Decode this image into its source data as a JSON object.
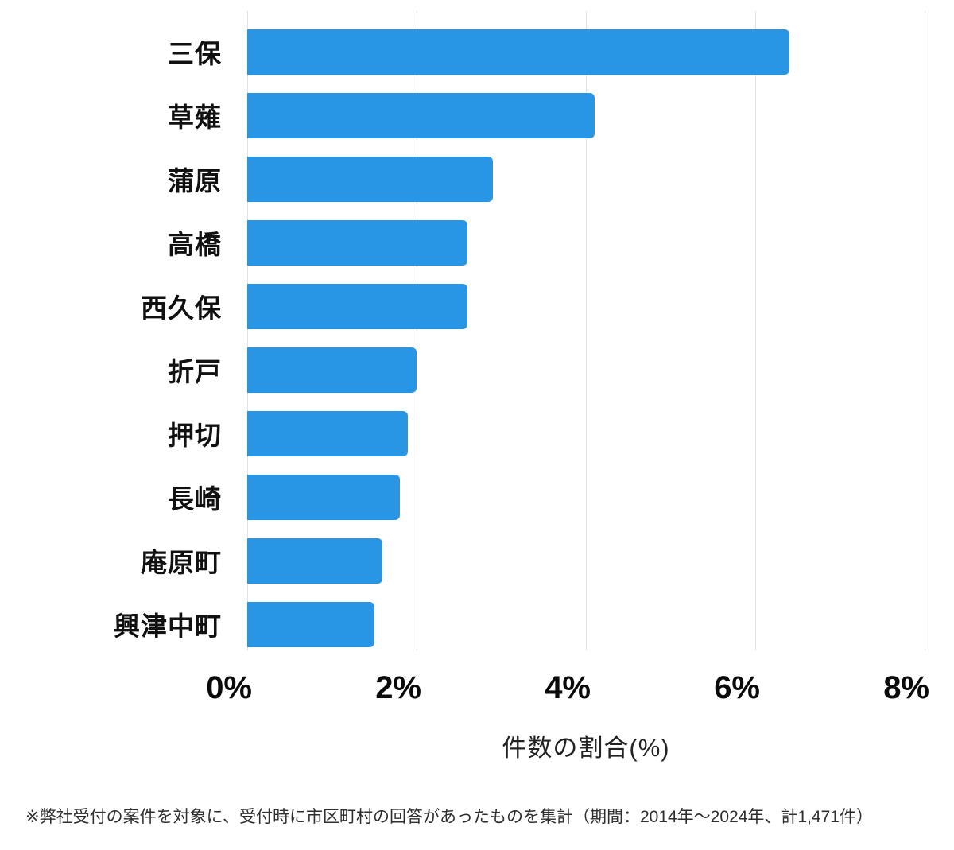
{
  "chart_data": {
    "type": "bar",
    "orientation": "horizontal",
    "categories": [
      "三保",
      "草薙",
      "蒲原",
      "高橋",
      "西久保",
      "折戸",
      "押切",
      "長崎",
      "庵原町",
      "興津中町"
    ],
    "values": [
      6.4,
      4.1,
      2.9,
      2.6,
      2.6,
      2.0,
      1.9,
      1.8,
      1.6,
      1.5
    ],
    "title": "",
    "xlabel": "件数の割合(%)",
    "ylabel": "",
    "xlim": [
      0,
      8
    ],
    "x_tick_values": [
      0,
      2,
      4,
      6,
      8
    ],
    "x_tick_labels": [
      "0%",
      "2%",
      "4%",
      "6%",
      "8%"
    ],
    "grid": "vertical",
    "legend": "none"
  },
  "colors": {
    "bar": "#2996e5",
    "gridline": "#e2e2e2",
    "tick_text": "#0a0a0a",
    "label_text": "#111111",
    "background": "#ffffff"
  },
  "footnote": "※弊社受付の案件を対象に、受付時に市区町村の回答があったものを集計（期間：2014年〜2024年、計1,471件）"
}
